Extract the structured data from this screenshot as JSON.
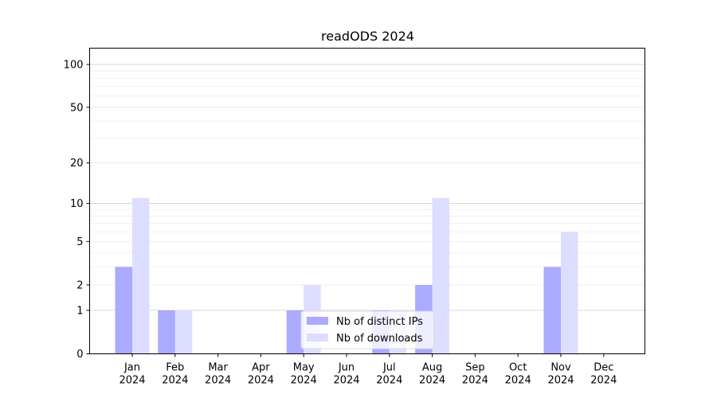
{
  "chart_data": {
    "type": "bar",
    "title": "readODS 2024",
    "xlabel": "",
    "ylabel": "",
    "yscale": "log(1+y)",
    "ylim": [
      0,
      130
    ],
    "yticks": [
      0,
      1,
      2,
      5,
      10,
      20,
      50,
      100
    ],
    "grid": true,
    "legend_position": "bottom-center",
    "categories": [
      {
        "month": "Jan",
        "year": "2024"
      },
      {
        "month": "Feb",
        "year": "2024"
      },
      {
        "month": "Mar",
        "year": "2024"
      },
      {
        "month": "Apr",
        "year": "2024"
      },
      {
        "month": "May",
        "year": "2024"
      },
      {
        "month": "Jun",
        "year": "2024"
      },
      {
        "month": "Jul",
        "year": "2024"
      },
      {
        "month": "Aug",
        "year": "2024"
      },
      {
        "month": "Sep",
        "year": "2024"
      },
      {
        "month": "Oct",
        "year": "2024"
      },
      {
        "month": "Nov",
        "year": "2024"
      },
      {
        "month": "Dec",
        "year": "2024"
      }
    ],
    "series": [
      {
        "name": "Nb of distinct IPs",
        "color": "#aaaaff",
        "values": [
          3,
          1,
          0,
          0,
          1,
          0,
          1,
          2,
          0,
          0,
          3,
          0
        ]
      },
      {
        "name": "Nb of downloads",
        "color": "#ddddff",
        "values": [
          11,
          1,
          0,
          0,
          2,
          0,
          1,
          11,
          0,
          0,
          6,
          0
        ]
      }
    ]
  }
}
